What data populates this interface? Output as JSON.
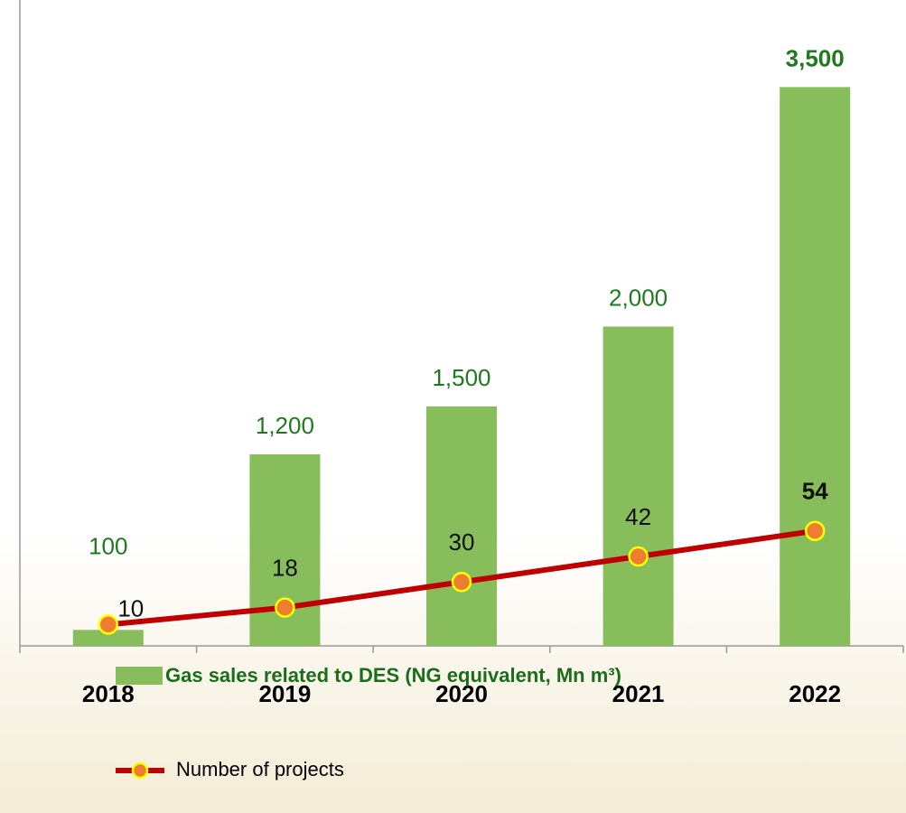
{
  "chart_data": {
    "type": "bar_line",
    "categories": [
      "2018",
      "2019",
      "2020",
      "2021",
      "2022"
    ],
    "series": [
      {
        "name": "Gas sales related to DES (NG equivalent, Mn m³)",
        "type": "bar",
        "color": "#87bd5a",
        "values": [
          100,
          1200,
          1500,
          2000,
          3500
        ],
        "value_labels": [
          "100",
          "1,200",
          "1,500",
          "2,000",
          "3,500"
        ]
      },
      {
        "name": "Number of projects",
        "type": "line",
        "axis": "y2",
        "color": "#c00000",
        "marker_color": "#ed7d31",
        "values": [
          10,
          18,
          30,
          42,
          54
        ]
      }
    ],
    "ylim": [
      0,
      4000
    ],
    "y2lim": [
      0,
      300
    ],
    "legend": "bottom"
  }
}
